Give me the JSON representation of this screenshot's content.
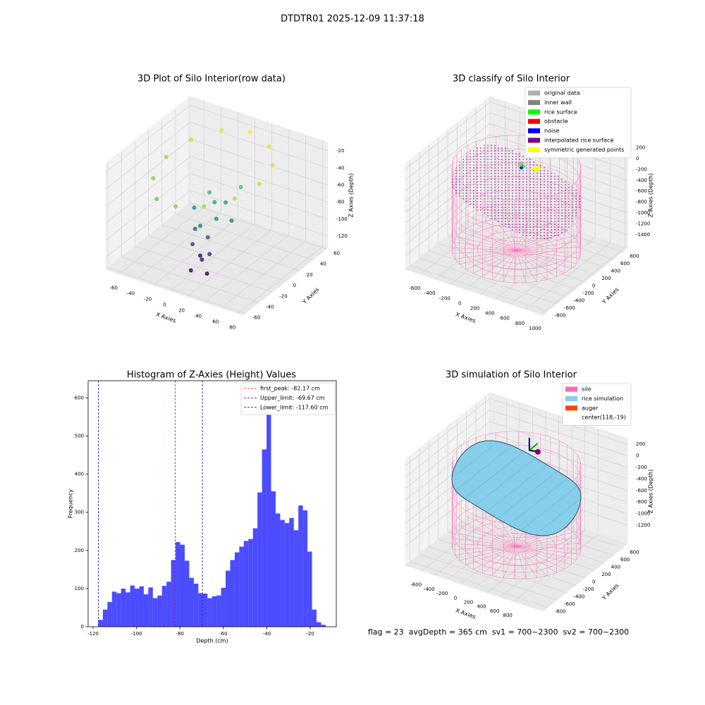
{
  "title": "DTDTR01 2025-12-09 11:37:18",
  "annotation": "flag = 23  avgDepth = 365 cm  sv1 = 700~2300  sv2 = 700~2300",
  "chart_data": [
    {
      "type": "scatter3d",
      "title": "3D Plot of Silo Interior(row data)",
      "xlabel": "X Axies",
      "ylabel": "Y Axies",
      "zlabel": "Z Axies (Depth)",
      "cmap": "viridis",
      "xlim": [
        -76,
        86
      ],
      "ylim": [
        -63,
        62
      ],
      "zlim": [
        -134,
        -10
      ],
      "xticks": [
        -60,
        -40,
        -20,
        0,
        20,
        40,
        60,
        80
      ],
      "yticks": [
        -60,
        -40,
        -20,
        0,
        20,
        40,
        60
      ],
      "zticks": [
        -120,
        -100,
        -80,
        -60,
        -40,
        -20
      ],
      "x": [
        55,
        48,
        28,
        0,
        -28,
        -48,
        -55,
        -48,
        -28,
        0,
        28,
        48,
        10,
        20,
        5,
        15,
        30,
        0,
        25,
        -10,
        10,
        0,
        15,
        5,
        20,
        -5,
        25,
        10
      ],
      "y": [
        0,
        28,
        48,
        55,
        48,
        28,
        0,
        -28,
        -48,
        -55,
        -48,
        -28,
        -10,
        -20,
        -25,
        0,
        -10,
        -5,
        10,
        -15,
        -20,
        -30,
        -35,
        -25,
        -30,
        -20,
        -40,
        -45
      ],
      "z": [
        -30,
        -28,
        -25,
        -22,
        -25,
        -30,
        -35,
        -40,
        -45,
        -40,
        -35,
        -32,
        -60,
        -70,
        -80,
        -65,
        -75,
        -55,
        -50,
        -70,
        -95,
        -100,
        -110,
        -115,
        -105,
        -90,
        -120,
        -118
      ]
    },
    {
      "type": "3d",
      "title": "3D classify of Silo Interior",
      "xlabel": "X Axies",
      "ylabel": "Y Axies",
      "zlabel": "Z Axies (Depth)",
      "xlim": [
        -800,
        1030
      ],
      "ylim": [
        -900,
        900
      ],
      "zlim": [
        -1650,
        300
      ],
      "xticks": [
        -600,
        -400,
        -200,
        0,
        200,
        400,
        600,
        800,
        1000
      ],
      "yticks": [
        -800,
        -600,
        -400,
        -200,
        0,
        200,
        400,
        600,
        800
      ],
      "zticks": [
        -1400,
        -1200,
        -1000,
        -800,
        -600,
        -400,
        -200,
        0,
        200
      ],
      "legend": [
        {
          "name": "original data",
          "color": "#b0b0b0"
        },
        {
          "name": "inner wall",
          "color": "#808080"
        },
        {
          "name": "rice surface",
          "color": "#00ff00"
        },
        {
          "name": "obstacle",
          "color": "#ff0000"
        },
        {
          "name": "noise",
          "color": "#0000ff"
        },
        {
          "name": "interpolated rice surface",
          "color": "#800080"
        },
        {
          "name": "symmetric generated points",
          "color": "#ffff00"
        }
      ]
    },
    {
      "type": "histogram",
      "title": "Histogram of Z-Axies (Height) Values",
      "xlabel": "Depth (cm)",
      "ylabel": "Frequency",
      "color": "#0000ff",
      "legend_position": "upper right",
      "xlim": [
        -122.3,
        -8
      ],
      "ylim": [
        0,
        645
      ],
      "xticks": [
        -120,
        -100,
        -80,
        -60,
        -40,
        -20
      ],
      "yticks": [
        0,
        100,
        200,
        300,
        400,
        500,
        600
      ],
      "bins": [
        -117.6,
        -115.51,
        -113.41,
        -111.32,
        -109.22,
        -107.13,
        -105.04,
        -102.94,
        -100.85,
        -98.75,
        -96.66,
        -94.57,
        -92.47,
        -90.38,
        -88.28,
        -86.19,
        -84.1,
        -82.0,
        -79.91,
        -77.81,
        -75.72,
        -73.63,
        -71.53,
        -69.44,
        -67.34,
        -65.25,
        -63.16,
        -61.06,
        -58.97,
        -56.87,
        -54.78,
        -52.69,
        -50.59,
        -48.5,
        -46.4,
        -44.31,
        -42.22,
        -40.12,
        -38.03,
        -35.93,
        -33.84,
        -31.75,
        -29.65,
        -27.56,
        -25.46,
        -23.37,
        -21.28,
        -19.18,
        -17.09,
        -14.99,
        -12.9
      ],
      "values": [
        18,
        45,
        65,
        92,
        88,
        100,
        90,
        108,
        100,
        106,
        85,
        103,
        75,
        82,
        107,
        118,
        175,
        222,
        215,
        173,
        128,
        113,
        88,
        87,
        75,
        80,
        82,
        102,
        147,
        175,
        195,
        210,
        225,
        230,
        258,
        352,
        465,
        605,
        355,
        297,
        280,
        272,
        285,
        253,
        318,
        305,
        197,
        45,
        12,
        5
      ],
      "lines": [
        {
          "label": "first_peak: -82.17 cm",
          "value": -82.17,
          "color": "#ff0000"
        },
        {
          "label": "Upper_limit: -69.67 cm",
          "value": -69.67,
          "color": "#0000ff"
        },
        {
          "label": "Lower_limit: -117.60 cm",
          "value": -117.6,
          "color": "#0000ff"
        }
      ]
    },
    {
      "type": "3d",
      "title": "3D simulation of Silo Interior",
      "xlabel": "X Axies",
      "ylabel": "Y Axies",
      "zlabel": "Z Axies (Depth)",
      "xlim": [
        -850,
        1250
      ],
      "ylim": [
        -900,
        900
      ],
      "zlim": [
        -1530,
        300
      ],
      "xticks": [
        -600,
        -400,
        -200,
        0,
        200,
        400,
        600,
        800
      ],
      "yticks": [
        -800,
        -600,
        -400,
        -200,
        0,
        200,
        400,
        600,
        800
      ],
      "zticks": [
        -1200,
        -1000,
        -800,
        -600,
        -400,
        -200,
        0,
        200
      ],
      "surface": true,
      "legend": [
        {
          "name": "silo",
          "color": "#ff69b4"
        },
        {
          "name": "rice simulation",
          "color": "#87ceeb"
        },
        {
          "name": "auger",
          "color": "#ff4500"
        },
        {
          "name": "center(118,-19)",
          "color": "#ffffff"
        }
      ]
    }
  ]
}
